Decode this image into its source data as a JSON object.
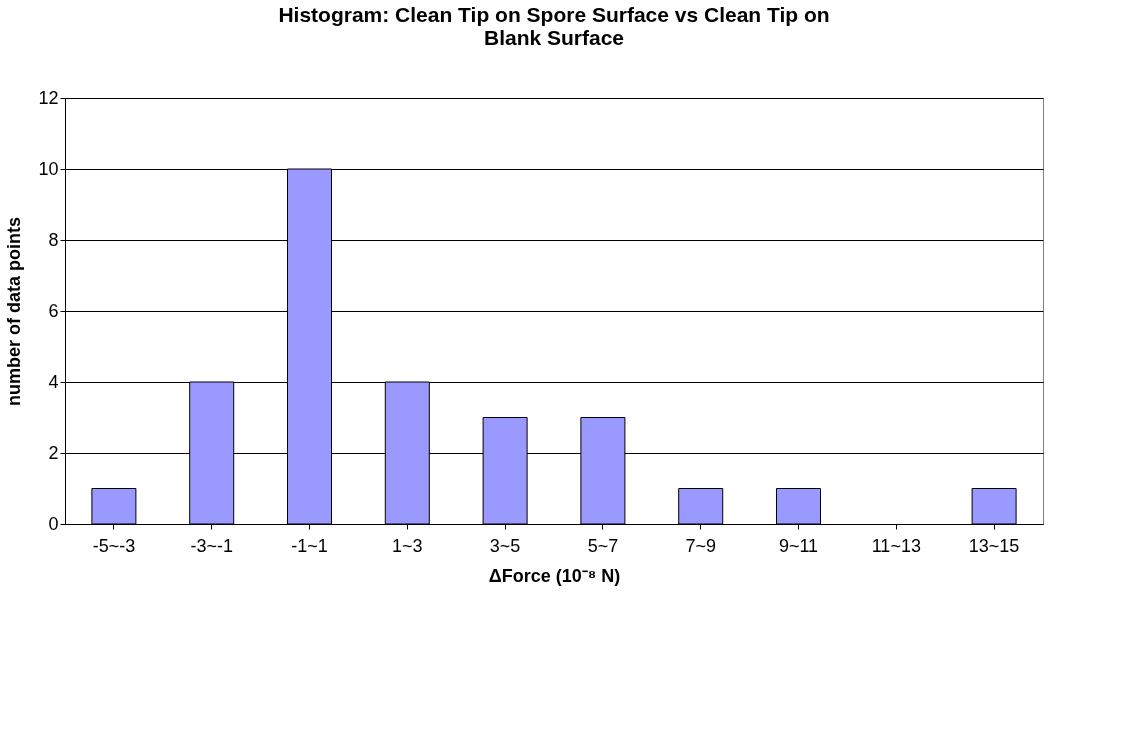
{
  "chart_data": {
    "type": "bar",
    "title": "Histogram:  Clean Tip on Spore Surface vs Clean Tip on Blank Surface",
    "xlabel": "ΔForce (10⁻⁸ N)",
    "ylabel": "number of data points",
    "categories": [
      "-5~-3",
      "-3~-1",
      "-1~1",
      "1~3",
      "3~5",
      "5~7",
      "7~9",
      "9~11",
      "11~13",
      "13~15"
    ],
    "values": [
      1,
      4,
      10,
      4,
      3,
      3,
      1,
      1,
      0,
      1
    ],
    "color": "#9999ff",
    "ylim": [
      0,
      12
    ],
    "yticks": [
      0,
      2,
      4,
      6,
      8,
      10,
      12
    ],
    "grid": "y"
  }
}
